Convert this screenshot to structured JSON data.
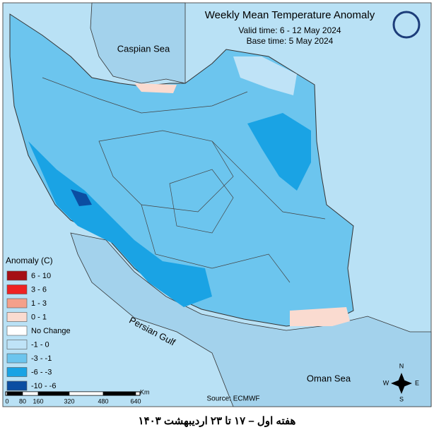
{
  "header": {
    "title": "Weekly Mean Temperature Anomaly",
    "valid_time": "Valid time: 6 - 12 May 2024",
    "base_time": "Base time: 5 May 2024"
  },
  "labels": {
    "caspian": "Caspian Sea",
    "gulf": "Persian Gulf",
    "oman": "Oman Sea"
  },
  "legend": {
    "title": "Anomaly (C)",
    "items": [
      {
        "label": "6 - 10",
        "color": "#a50f15"
      },
      {
        "label": "3 - 6",
        "color": "#ee2222"
      },
      {
        "label": "1 - 3",
        "color": "#f4a08a"
      },
      {
        "label": "0 - 1",
        "color": "#fadbd0"
      },
      {
        "label": "No Change",
        "color": "#ffffff"
      },
      {
        "label": "-1 - 0",
        "color": "#bfe3f7"
      },
      {
        "label": "-3 - -1",
        "color": "#6cc5ee"
      },
      {
        "label": "-6 - -3",
        "color": "#1aa3e4"
      },
      {
        "label": "-10 - -6",
        "color": "#0b4ea2"
      }
    ]
  },
  "scale_bar": {
    "labels": [
      "0",
      "80",
      "160",
      "320",
      "480",
      "640"
    ],
    "unit": "Km"
  },
  "source": "Source: ECMWF",
  "compass": {
    "n": "N",
    "s": "S",
    "e": "E",
    "w": "W"
  },
  "caption": "هفته اول – ۱۷ تا ۲۳ اردیبهشت ۱۴۰۳"
}
